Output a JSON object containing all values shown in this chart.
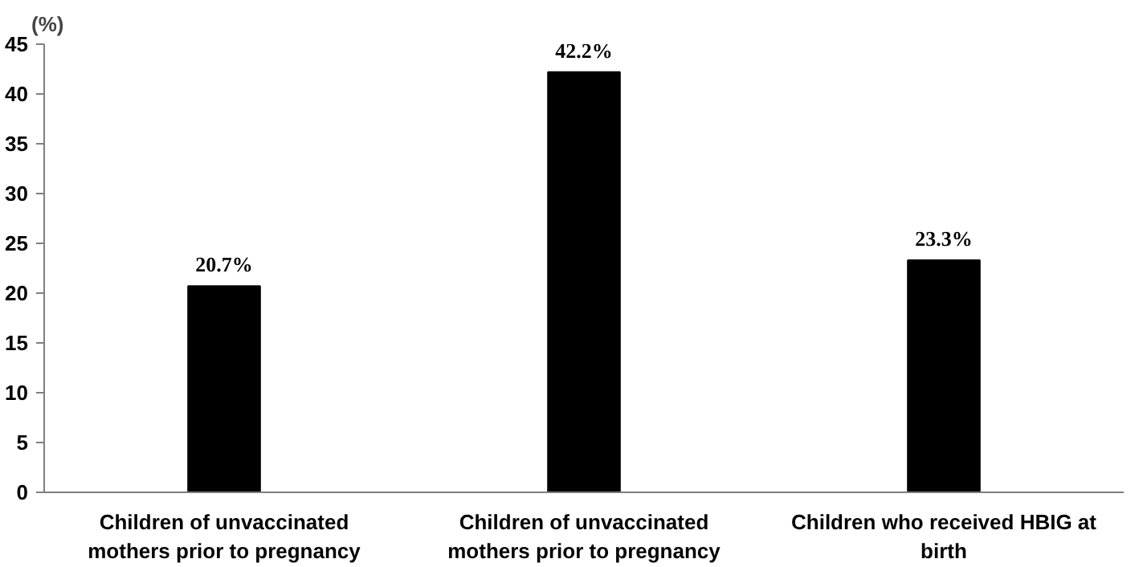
{
  "chart_data": {
    "type": "bar",
    "ylabel": "(%)",
    "categories": [
      "Children of unvaccinated\nmothers prior to pregnancy",
      "Children of unvaccinated\nmothers prior to pregnancy",
      "Children who received HBIG at\nbirth"
    ],
    "values": [
      20.7,
      42.2,
      23.3
    ],
    "color": "#000000",
    "value_labels": [
      "20.7%",
      "42.2%",
      "23.3%"
    ],
    "ylim": [
      0,
      45
    ],
    "yticks": [
      0,
      5,
      10,
      15,
      20,
      25,
      30,
      35,
      40,
      45
    ],
    "grid": false
  }
}
